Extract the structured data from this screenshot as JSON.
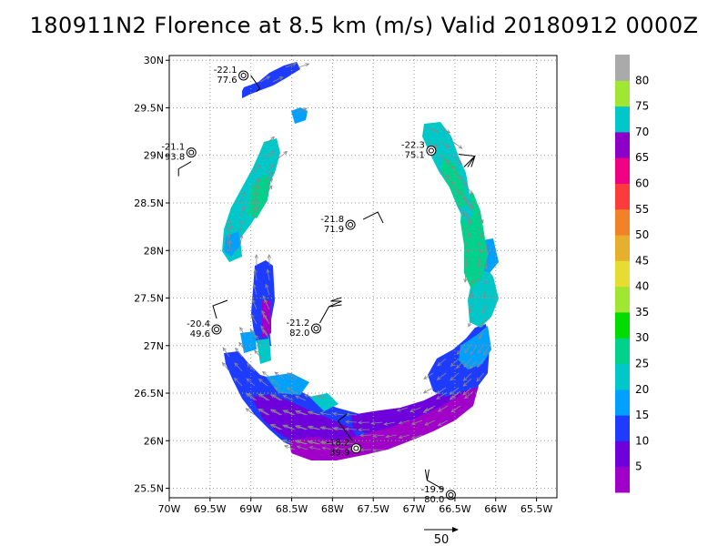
{
  "chart_data": {
    "type": "heatmap",
    "title": "180911N2 Florence at 8.5 km (m/s) Valid 20180912 0000Z",
    "xlim": [
      -70,
      -65.25
    ],
    "ylim": [
      25.4,
      30.05
    ],
    "x_ticks": [
      -70,
      -69.5,
      -69,
      -68.5,
      -68,
      -67.5,
      -67,
      -66.5,
      -66,
      -65.5
    ],
    "x_tick_labels": [
      "70W",
      "69.5W",
      "69W",
      "68.5W",
      "68W",
      "67.5W",
      "67W",
      "66.5W",
      "66W",
      "65.5W"
    ],
    "y_ticks": [
      25.5,
      26,
      26.5,
      27,
      27.5,
      28,
      28.5,
      29,
      29.5,
      30
    ],
    "y_tick_labels": [
      "25.5N",
      "26N",
      "26.5N",
      "27N",
      "27.5N",
      "28N",
      "28.5N",
      "29N",
      "29.5N",
      "30N"
    ],
    "grid": true,
    "colorbar": {
      "levels": [
        5,
        10,
        15,
        20,
        25,
        30,
        35,
        40,
        45,
        50,
        55,
        60,
        65,
        70,
        75,
        80
      ],
      "labels": [
        "5",
        "10",
        "15",
        "20",
        "25",
        "30",
        "35",
        "40",
        "45",
        "50",
        "55",
        "60",
        "65",
        "70",
        "75",
        "80"
      ],
      "colors": [
        "#a000c8",
        "#6e00dc",
        "#1e3cff",
        "#00a0ff",
        "#00c8c8",
        "#00d28c",
        "#00dc00",
        "#a0e632",
        "#e6dc32",
        "#e6af2d",
        "#f08228",
        "#fa3c3c",
        "#f00082",
        "#8c00c8",
        "#00c8c8",
        "#a0e632",
        "#aaaaaa"
      ]
    },
    "dropsondes": [
      {
        "temp": "-22.1",
        "rh": "77.6",
        "lon": -69.09,
        "lat": 29.84
      },
      {
        "temp": "-21.1",
        "rh": "93.8",
        "lon": -69.73,
        "lat": 29.03
      },
      {
        "temp": "-22.3",
        "rh": "75.1",
        "lon": -66.79,
        "lat": 29.05
      },
      {
        "temp": "-21.8",
        "rh": "71.9",
        "lon": -67.78,
        "lat": 28.27
      },
      {
        "temp": "-20.4",
        "rh": "49.6",
        "lon": -69.42,
        "lat": 27.17
      },
      {
        "temp": "-21.2",
        "rh": "82.0",
        "lon": -68.2,
        "lat": 27.18
      },
      {
        "temp": "-18.2",
        "rh": "39.9",
        "lon": -67.71,
        "lat": 25.92
      },
      {
        "temp": "-19.9",
        "rh": "80.0",
        "lon": -66.55,
        "lat": 25.43
      }
    ],
    "reference_vector_label": "50"
  }
}
